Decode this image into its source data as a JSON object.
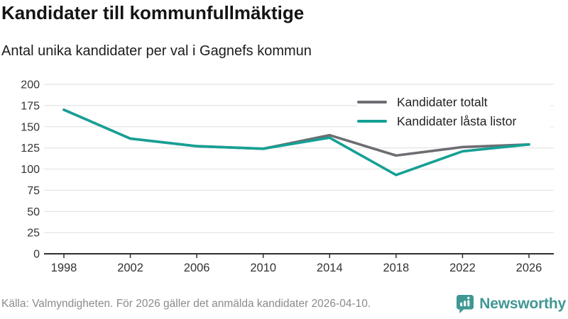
{
  "title": "Kandidater till kommunfullmäktige",
  "subtitle": "Antal unika kandidater per val i Gagnefs kommun",
  "footer": {
    "source": "Källa: Valmyndigheten. För 2026 gäller det anmälda kandidater 2026-04-10.",
    "brand": "Newsworthy"
  },
  "colors": {
    "total": "#6d6d72",
    "locked": "#15a095",
    "grid": "#e4e4e4",
    "axis": "#2f2f2f",
    "tick_label": "#333333",
    "legend_text": "#222222",
    "footer_text": "#8b8b8b",
    "brand_teal": "#3f9793"
  },
  "chart_data": {
    "type": "line",
    "x": [
      1998,
      2002,
      2006,
      2010,
      2014,
      2018,
      2022,
      2026
    ],
    "series": [
      {
        "name": "Kandidater totalt",
        "color_key": "total",
        "values": [
          170,
          136,
          127,
          124,
          140,
          116,
          126,
          129
        ]
      },
      {
        "name": "Kandidater låsta listor",
        "color_key": "locked",
        "values": [
          170,
          136,
          127,
          124,
          137,
          93,
          121,
          129
        ]
      }
    ],
    "ylim": [
      0,
      200
    ],
    "yticks": [
      0,
      25,
      50,
      75,
      100,
      125,
      150,
      175,
      200
    ],
    "grid": true,
    "legend_position": "top-right",
    "xlabel": "",
    "ylabel": ""
  }
}
